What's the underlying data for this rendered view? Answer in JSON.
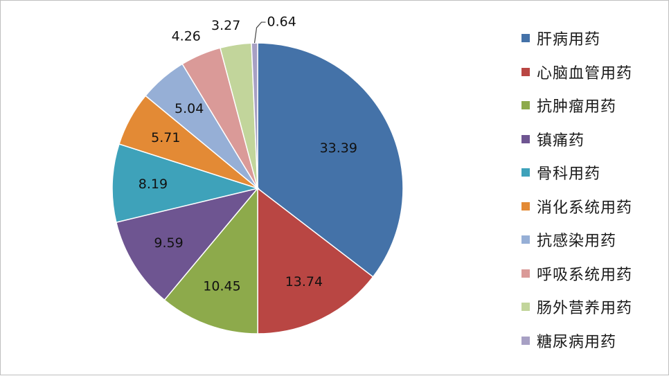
{
  "chart_data": {
    "type": "pie",
    "slices": [
      {
        "label": "肝病用药",
        "value": 33.39,
        "value_text": "33.39",
        "color": "#4472A8"
      },
      {
        "label": "心脑血管用药",
        "value": 13.74,
        "value_text": "13.74",
        "color": "#B94643"
      },
      {
        "label": "抗肿瘤用药",
        "value": 10.45,
        "value_text": "10.45",
        "color": "#8DAA4B"
      },
      {
        "label": "镇痛药",
        "value": 9.59,
        "value_text": "9.59",
        "color": "#6E5591"
      },
      {
        "label": "骨科用药",
        "value": 8.19,
        "value_text": "8.19",
        "color": "#3EA2BA"
      },
      {
        "label": "消化系统用药",
        "value": 5.71,
        "value_text": "5.71",
        "color": "#E38A35"
      },
      {
        "label": "抗感染用药",
        "value": 5.04,
        "value_text": "5.04",
        "color": "#96AFD6"
      },
      {
        "label": "呼吸系统用药",
        "value": 4.26,
        "value_text": "4.26",
        "color": "#DA9A98"
      },
      {
        "label": "肠外营养用药",
        "value": 3.27,
        "value_text": "3.27",
        "color": "#C2D59B"
      },
      {
        "label": "糖尿病用药",
        "value": 0.64,
        "value_text": "0.64",
        "color": "#A7A0C4"
      }
    ],
    "legend_position": "right"
  }
}
